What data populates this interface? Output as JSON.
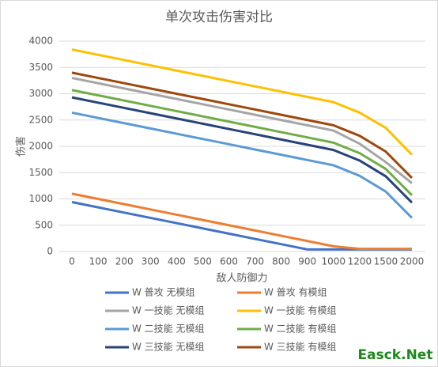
{
  "chart_data": {
    "type": "line",
    "title": "单次攻击伤害对比",
    "x_label": "敌人防御力",
    "y_label": "伤害",
    "categories": [
      "0",
      "100",
      "200",
      "300",
      "400",
      "500",
      "600",
      "700",
      "800",
      "900",
      "1000",
      "1200",
      "1500",
      "2000"
    ],
    "ylim": [
      0,
      4000
    ],
    "yticks": [
      0,
      500,
      1000,
      1500,
      2000,
      2500,
      3000,
      3500,
      4000
    ],
    "grid": true,
    "legend": "bottom",
    "series": [
      {
        "name": "W 普攻 无模组",
        "color": "#4472c4",
        "values": [
          940,
          840,
          740,
          640,
          540,
          440,
          340,
          240,
          140,
          40,
          40,
          40,
          40,
          40
        ]
      },
      {
        "name": "W 普攻 有模组",
        "color": "#ed7d31",
        "values": [
          1100,
          1000,
          900,
          800,
          700,
          600,
          500,
          400,
          300,
          200,
          100,
          50,
          50,
          50
        ]
      },
      {
        "name": "W 一技能 无模组",
        "color": "#a5a5a5",
        "values": [
          3300,
          3200,
          3100,
          3000,
          2900,
          2800,
          2700,
          2600,
          2500,
          2400,
          2300,
          2050,
          1700,
          1300
        ]
      },
      {
        "name": "W 一技能 有模组",
        "color": "#ffc000",
        "values": [
          3840,
          3740,
          3640,
          3540,
          3440,
          3340,
          3240,
          3140,
          3040,
          2940,
          2840,
          2640,
          2350,
          1840
        ]
      },
      {
        "name": "W 二技能 无模组",
        "color": "#5b9bd5",
        "values": [
          2640,
          2540,
          2440,
          2340,
          2240,
          2140,
          2040,
          1940,
          1840,
          1740,
          1640,
          1440,
          1140,
          640
        ]
      },
      {
        "name": "W 二技能 有模组",
        "color": "#70ad47",
        "values": [
          3070,
          2970,
          2870,
          2770,
          2670,
          2570,
          2470,
          2370,
          2270,
          2170,
          2070,
          1870,
          1570,
          1070
        ]
      },
      {
        "name": "W 三技能 无模组",
        "color": "#264478",
        "values": [
          2930,
          2830,
          2730,
          2630,
          2530,
          2430,
          2330,
          2230,
          2130,
          2030,
          1930,
          1730,
          1430,
          930
        ]
      },
      {
        "name": "W 三技能 有模组",
        "color": "#9e480e",
        "values": [
          3400,
          3300,
          3200,
          3100,
          3000,
          2900,
          2800,
          2700,
          2600,
          2500,
          2400,
          2200,
          1900,
          1400
        ]
      }
    ]
  },
  "watermark": "Easck.Net"
}
